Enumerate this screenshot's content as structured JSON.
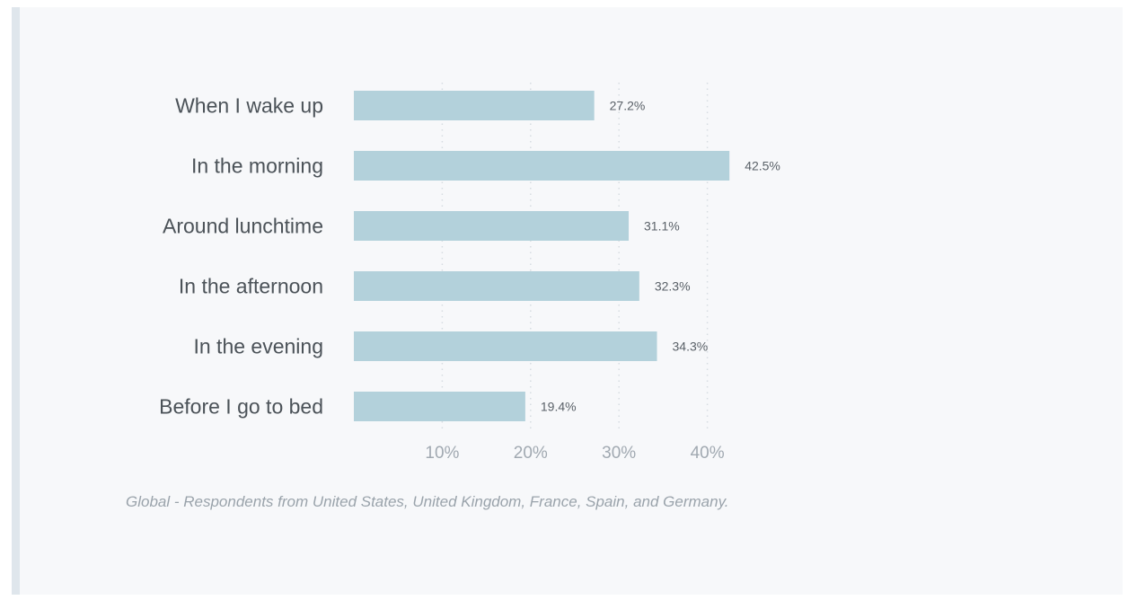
{
  "chart_data": {
    "type": "bar",
    "orientation": "horizontal",
    "categories": [
      "When I wake up",
      "In the morning",
      "Around lunchtime",
      "In the afternoon",
      "In the evening",
      "Before I go to bed"
    ],
    "values": [
      27.2,
      42.5,
      31.1,
      32.3,
      34.3,
      19.4
    ],
    "value_labels": [
      "27.2%",
      "42.5%",
      "31.1%",
      "32.3%",
      "34.3%",
      "19.4%"
    ],
    "x_ticks": [
      10,
      20,
      30,
      40
    ],
    "x_tick_labels": [
      "10%",
      "20%",
      "30%",
      "40%"
    ],
    "xlim": [
      0,
      45
    ],
    "grid": "vertical dotted",
    "legend": "none",
    "bar_color": "#b3d1db",
    "title": "",
    "xlabel": "",
    "ylabel": ""
  },
  "caption": "Global - Respondents from United States, United Kingdom, France, Spain, and Germany."
}
